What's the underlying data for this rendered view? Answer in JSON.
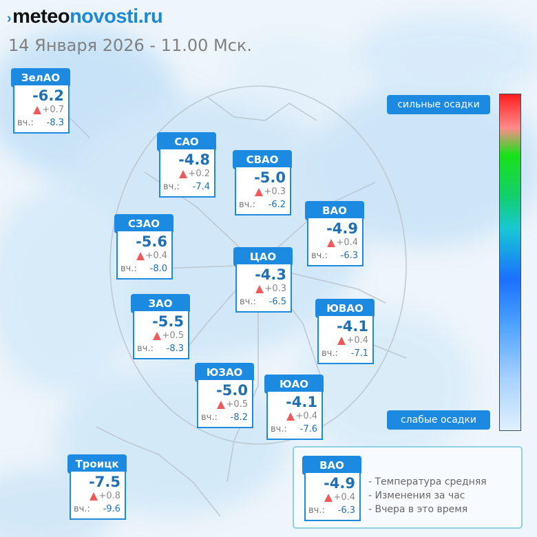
{
  "brand": {
    "part1": "meteo",
    "part2": "novosti",
    "part3": ".ru"
  },
  "subtitle": "14 Января 2026 - 11.00 Мск.",
  "districts": [
    {
      "name": "ЗелАО",
      "temp": "-6.2",
      "change": "+0.7",
      "yesterday_label": "вч.:",
      "yesterday": "-8.3"
    },
    {
      "name": "САО",
      "temp": "-4.8",
      "change": "+0.2",
      "yesterday_label": "вч.:",
      "yesterday": "-7.4"
    },
    {
      "name": "СВАО",
      "temp": "-5.0",
      "change": "+0.3",
      "yesterday_label": "вч.:",
      "yesterday": "-6.2"
    },
    {
      "name": "СЗАО",
      "temp": "-5.6",
      "change": "+0.4",
      "yesterday_label": "вч.:",
      "yesterday": "-8.0"
    },
    {
      "name": "ВАО",
      "temp": "-4.9",
      "change": "+0.4",
      "yesterday_label": "вч.:",
      "yesterday": "-6.3"
    },
    {
      "name": "ЦАО",
      "temp": "-4.3",
      "change": "+0.3",
      "yesterday_label": "вч.:",
      "yesterday": "-6.5"
    },
    {
      "name": "ЗАО",
      "temp": "-5.5",
      "change": "+0.5",
      "yesterday_label": "вч.:",
      "yesterday": "-8.3"
    },
    {
      "name": "ЮВАО",
      "temp": "-4.1",
      "change": "+0.4",
      "yesterday_label": "вч.:",
      "yesterday": "-7.1"
    },
    {
      "name": "ЮЗАО",
      "temp": "-5.0",
      "change": "+0.5",
      "yesterday_label": "вч.:",
      "yesterday": "-8.2"
    },
    {
      "name": "ЮАО",
      "temp": "-4.1",
      "change": "+0.4",
      "yesterday_label": "вч.:",
      "yesterday": "-7.6"
    },
    {
      "name": "Троицк",
      "temp": "-7.5",
      "change": "+0.8",
      "yesterday_label": "вч.:",
      "yesterday": "-9.6"
    }
  ],
  "precip_scale": {
    "top_label": "сильные осадки",
    "bottom_label": "слабые осадки",
    "colors": [
      "#ff1d1d",
      "#18e218",
      "#17c8d4",
      "#1a70ff",
      "#dff0ff"
    ]
  },
  "legend": {
    "sample": {
      "name": "ВАО",
      "temp": "-4.9",
      "change": "+0.4",
      "yesterday_label": "вч.:",
      "yesterday": "-6.3"
    },
    "lines": [
      "- Температура средняя",
      "- Изменения за час",
      "- Вчера в это время"
    ]
  },
  "colors": {
    "accent": "#1b8ae0",
    "temperature": "#1f6fb5",
    "rise_marker": "#ee5a5a"
  }
}
